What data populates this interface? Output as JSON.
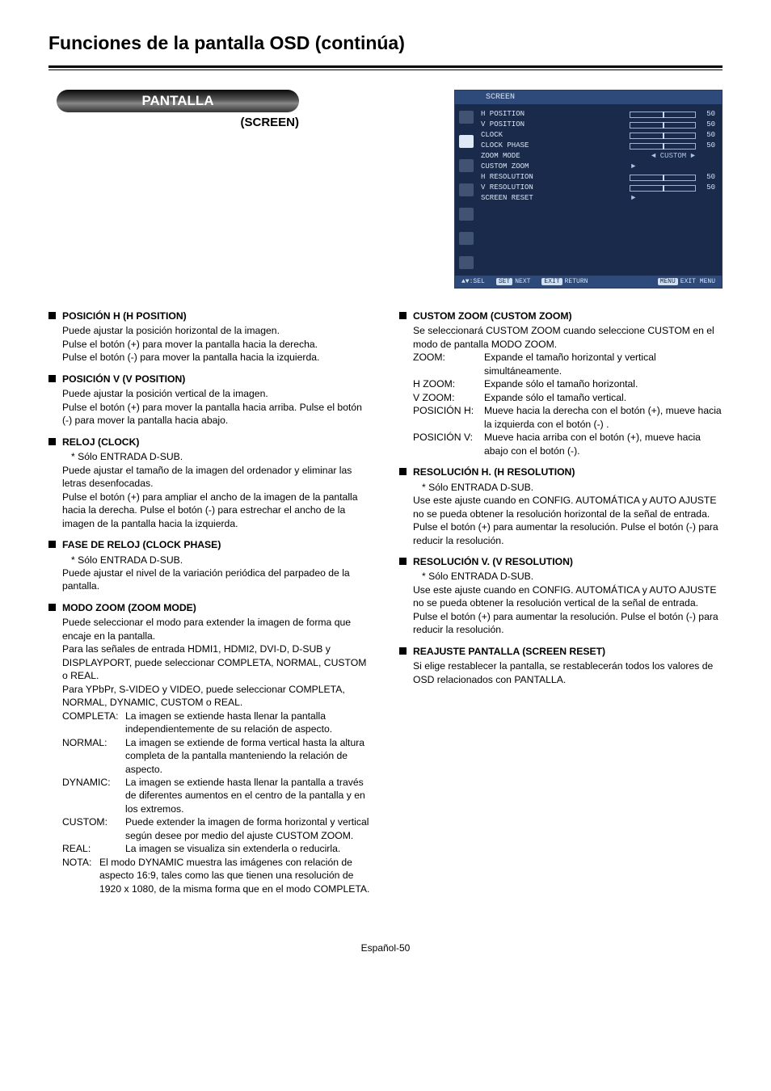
{
  "page_title": "Funciones de la pantalla OSD (continúa)",
  "pill": "PANTALLA",
  "pill_sub": "(SCREEN)",
  "osd": {
    "head": "SCREEN",
    "rows": [
      {
        "label": "H POSITION",
        "slider": true,
        "val": "50"
      },
      {
        "label": "V POSITION",
        "slider": true,
        "val": "50"
      },
      {
        "label": "CLOCK",
        "slider": true,
        "val": "50"
      },
      {
        "label": "CLOCK PHASE",
        "slider": true,
        "val": "50"
      },
      {
        "label": "ZOOM MODE",
        "arrows": true,
        "center": "CUSTOM"
      },
      {
        "label": "CUSTOM ZOOM",
        "tri": true
      },
      {
        "label": "H RESOLUTION",
        "slider": true,
        "val": "50"
      },
      {
        "label": "V RESOLUTION",
        "slider": true,
        "val": "50"
      },
      {
        "label": "SCREEN RESET",
        "tri": true
      }
    ],
    "foot_sel": "▲▼:SEL",
    "foot_next_btn": "SET",
    "foot_next": "NEXT",
    "foot_return_btn": "EXIT",
    "foot_return": "RETURN",
    "foot_exit_btn": "MENU",
    "foot_exit": "EXIT MENU"
  },
  "left": [
    {
      "h": "POSICIÓN H (H POSITION)",
      "p": [
        "Puede ajustar la posición horizontal de la imagen.",
        "Pulse el botón (+) para mover la pantalla hacia la derecha.",
        "Pulse el botón (-) para mover la pantalla hacia la izquierda."
      ]
    },
    {
      "h": "POSICIÓN V (V POSITION)",
      "p": [
        "Puede ajustar la posición vertical de la imagen.",
        "Pulse el botón (+) para mover la pantalla hacia arriba. Pulse el botón (-) para mover la pantalla hacia abajo."
      ]
    },
    {
      "h": "RELOJ (CLOCK)",
      "note": "* Sólo ENTRADA D-SUB.",
      "p": [
        "Puede ajustar el tamaño de la imagen del ordenador y eliminar las letras desenfocadas.",
        "Pulse el botón (+) para ampliar el ancho de la imagen de la pantalla hacia la derecha. Pulse el botón (-) para estrechar el ancho de la imagen de la pantalla hacia la izquierda."
      ]
    },
    {
      "h": "FASE DE RELOJ (CLOCK PHASE)",
      "note": "* Sólo ENTRADA D-SUB.",
      "p": [
        "Puede ajustar el nivel de la variación periódica del parpadeo de la pantalla."
      ]
    },
    {
      "h": "MODO ZOOM (ZOOM MODE)",
      "p": [
        "Puede seleccionar el modo para extender la imagen de forma que encaje en la pantalla.",
        "Para las señales de entrada HDMI1, HDMI2, DVI-D, D-SUB y DISPLAYPORT, puede seleccionar COMPLETA, NORMAL, CUSTOM o REAL.",
        "Para YPbPr, S-VIDEO y VIDEO, puede seleccionar COMPLETA, NORMAL, DYNAMIC, CUSTOM o REAL."
      ],
      "defs": [
        {
          "t": "COMPLETA:",
          "d": "La imagen se extiende hasta llenar la pantalla independientemente de su relación de aspecto."
        },
        {
          "t": "NORMAL:",
          "d": "La imagen se extiende de forma vertical hasta la altura completa de la pantalla manteniendo la relación de aspecto."
        },
        {
          "t": "DYNAMIC:",
          "d": "La imagen se extiende hasta llenar la pantalla a través de diferentes aumentos en el centro de la pantalla y en los extremos."
        },
        {
          "t": "CUSTOM:",
          "d": "Puede extender la imagen de forma horizontal y vertical según desee por medio del ajuste CUSTOM ZOOM."
        },
        {
          "t": "REAL:",
          "d": "La imagen se visualiza sin extenderla o reducirla."
        }
      ],
      "nota": {
        "t": "NOTA:",
        "d": "El modo DYNAMIC muestra las imágenes con relación de aspecto 16:9, tales como las que tienen una resolución de 1920 x 1080, de la misma forma que en el modo COMPLETA."
      }
    }
  ],
  "right": [
    {
      "h": "CUSTOM ZOOM (CUSTOM ZOOM)",
      "p": [
        "Se seleccionará CUSTOM ZOOM cuando seleccione CUSTOM en el modo de pantalla MODO ZOOM."
      ],
      "defs": [
        {
          "t": "ZOOM:",
          "d": "Expande el tamaño horizontal y vertical simultáneamente."
        },
        {
          "t": "H ZOOM:",
          "d": "Expande sólo el tamaño horizontal."
        },
        {
          "t": "V ZOOM:",
          "d": "Expande sólo el tamaño vertical."
        },
        {
          "t": "POSICIÓN H:",
          "d": "Mueve hacia la derecha con el botón (+), mueve hacia la izquierda con el botón (-) ."
        },
        {
          "t": "POSICIÓN V:",
          "d": "Mueve hacia arriba con el botón (+), mueve hacia abajo con el botón (-)."
        }
      ]
    },
    {
      "h": "RESOLUCIÓN H. (H RESOLUTION)",
      "note": "* Sólo ENTRADA D-SUB.",
      "p": [
        "Use este ajuste cuando en CONFIG. AUTOMÁTICA y AUTO AJUSTE no se pueda obtener la resolución horizontal de la señal de entrada.",
        "Pulse el botón (+) para aumentar la resolución. Pulse el botón (-) para reducir la resolución."
      ]
    },
    {
      "h": "RESOLUCIÓN V. (V RESOLUTION)",
      "note": "* Sólo ENTRADA D-SUB.",
      "p": [
        "Use este ajuste cuando en CONFIG. AUTOMÁTICA y AUTO AJUSTE no se pueda obtener la resolución vertical de la señal de entrada.",
        "Pulse el botón (+) para aumentar la resolución. Pulse el botón (-) para reducir la resolución."
      ]
    },
    {
      "h": "REAJUSTE PANTALLA (SCREEN RESET)",
      "p": [
        "Si elige restablecer la pantalla, se restablecerán todos los valores de OSD relacionados con PANTALLA."
      ]
    }
  ],
  "footer": "Español-50"
}
